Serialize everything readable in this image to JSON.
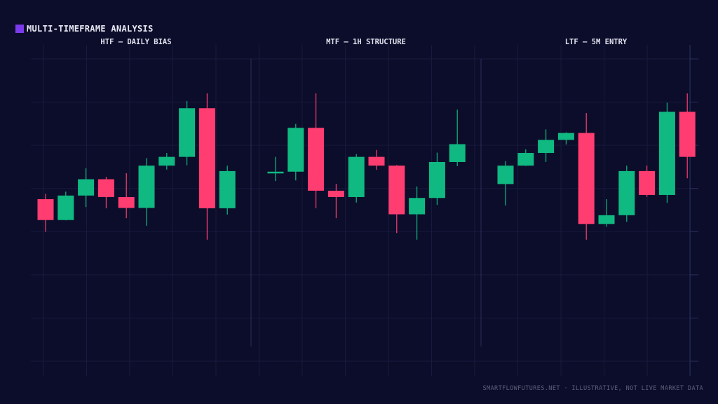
{
  "header": {
    "title": "MULTI-TIMEFRAME ANALYSIS",
    "accent_color": "#7c3aed"
  },
  "footer": {
    "text": "SMARTFLOWFUTURES.NET · ILLUSTRATIVE, NOT LIVE MARKET DATA"
  },
  "colors": {
    "background": "#0c0d2a",
    "bullish": "#10b981",
    "bearish": "#ff3d71",
    "grid": "#171a3e",
    "divider": "#2a2d5a"
  },
  "chart_data": [
    {
      "type": "candlestick",
      "title": "HTF — DAILY BIAS",
      "ylim": [
        0,
        100
      ],
      "grid": true,
      "candles": [
        {
          "open": 53.6,
          "close": 46.7,
          "high": 55.4,
          "low": 42.8
        },
        {
          "open": 46.7,
          "close": 54.8,
          "high": 56.1,
          "low": 46.6
        },
        {
          "open": 54.8,
          "close": 60.2,
          "high": 63.8,
          "low": 51.0
        },
        {
          "open": 60.2,
          "close": 54.3,
          "high": 61.0,
          "low": 50.6
        },
        {
          "open": 54.3,
          "close": 50.7,
          "high": 62.2,
          "low": 47.3
        },
        {
          "open": 50.7,
          "close": 64.7,
          "high": 67.2,
          "low": 44.8
        },
        {
          "open": 64.7,
          "close": 67.6,
          "high": 68.9,
          "low": 63.4
        },
        {
          "open": 67.6,
          "close": 83.7,
          "high": 86.1,
          "low": 64.8
        },
        {
          "open": 83.7,
          "close": 50.6,
          "high": 88.6,
          "low": 40.2
        },
        {
          "open": 50.6,
          "close": 62.9,
          "high": 64.7,
          "low": 48.5
        }
      ]
    },
    {
      "type": "candlestick",
      "title": "MTF — 1H STRUCTURE",
      "ylim": [
        0,
        100
      ],
      "grid": true,
      "candles": [
        {
          "open": 62.2,
          "close": 62.7,
          "high": 67.6,
          "low": 59.6
        },
        {
          "open": 62.7,
          "close": 77.2,
          "high": 78.5,
          "low": 59.8
        },
        {
          "open": 77.2,
          "close": 56.4,
          "high": 88.6,
          "low": 50.6
        },
        {
          "open": 56.4,
          "close": 54.3,
          "high": 58.7,
          "low": 47.3
        },
        {
          "open": 54.3,
          "close": 67.6,
          "high": 68.5,
          "low": 52.5
        },
        {
          "open": 67.6,
          "close": 64.7,
          "high": 69.9,
          "low": 63.3
        },
        {
          "open": 64.7,
          "close": 48.6,
          "high": 64.9,
          "low": 42.4
        },
        {
          "open": 48.6,
          "close": 54.0,
          "high": 57.8,
          "low": 40.2
        },
        {
          "open": 54.0,
          "close": 65.9,
          "high": 69.0,
          "low": 51.7
        },
        {
          "open": 65.9,
          "close": 71.8,
          "high": 83.2,
          "low": 64.5
        }
      ]
    },
    {
      "type": "candlestick",
      "title": "LTF — 5M ENTRY",
      "ylim": [
        0,
        100
      ],
      "grid": true,
      "candles": [
        {
          "open": 58.6,
          "close": 64.7,
          "high": 66.2,
          "low": 51.5
        },
        {
          "open": 64.7,
          "close": 68.9,
          "high": 70.1,
          "low": 64.6
        },
        {
          "open": 68.9,
          "close": 73.2,
          "high": 76.7,
          "low": 65.9
        },
        {
          "open": 73.2,
          "close": 75.5,
          "high": 75.7,
          "low": 71.7
        },
        {
          "open": 75.5,
          "close": 45.4,
          "high": 82.1,
          "low": 40.2
        },
        {
          "open": 45.4,
          "close": 48.3,
          "high": 53.6,
          "low": 44.5
        },
        {
          "open": 48.3,
          "close": 62.9,
          "high": 64.7,
          "low": 46.1
        },
        {
          "open": 62.9,
          "close": 55.0,
          "high": 64.7,
          "low": 54.4
        },
        {
          "open": 55.0,
          "close": 82.5,
          "high": 85.5,
          "low": 52.4
        },
        {
          "open": 82.5,
          "close": 67.6,
          "high": 88.6,
          "low": 60.5
        }
      ]
    }
  ]
}
